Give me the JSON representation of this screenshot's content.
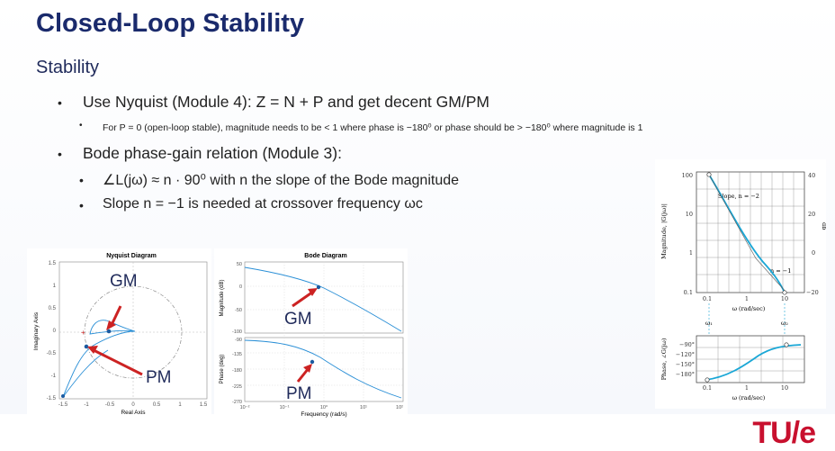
{
  "slide": {
    "title": "Closed-Loop Stability",
    "subtitle": "Stability",
    "bullets": [
      {
        "text": "Use Nyquist (Module 4): Z = N + P and get decent GM/PM"
      },
      {
        "text": "For P = 0 (open-loop stable), magnitude needs to be < 1 where phase is −180⁰ or phase should be > −180⁰ where magnitude is 1"
      },
      {
        "text": "Bode phase-gain relation (Module 3):"
      },
      {
        "text": "∠L(jω) ≈ n · 90⁰ with n the slope of the Bode magnitude"
      },
      {
        "text": "Slope n = −1 is needed at crossover frequency ωc"
      }
    ],
    "logo": "TU/e"
  },
  "nyquist": {
    "title": "Nyquist Diagram",
    "xlabel": "Real Axis",
    "ylabel": "Imaginary Axis",
    "xticks": [
      "-1.5",
      "-1",
      "-0.5",
      "0",
      "0.5",
      "1",
      "1.5"
    ],
    "yticks": [
      "1.5",
      "1",
      "0.5",
      "0",
      "-0.5",
      "-1",
      "-1.5"
    ],
    "gm_label": "GM",
    "pm_label": "PM"
  },
  "bode": {
    "title": "Bode Diagram",
    "mag_label": "Magnitude (dB)",
    "phase_label": "Phase (deg)",
    "xlabel": "Frequency (rad/s)",
    "mag_ticks": [
      "50",
      "0",
      "-50",
      "-100"
    ],
    "phase_ticks": [
      "-90",
      "-135",
      "-180",
      "-225",
      "-270"
    ],
    "freq_ticks": [
      "10⁻²",
      "10⁻¹",
      "10⁰",
      "10¹",
      "10²"
    ],
    "gm_label": "GM",
    "pm_label": "PM"
  },
  "textbook": {
    "mag_ylabel": "Magnitude, |G(jω)|",
    "right_label": "db",
    "left_ticks": [
      "100",
      "10",
      "1",
      "0.1"
    ],
    "right_ticks": [
      "40",
      "20",
      "0",
      "−20"
    ],
    "x_ticks": [
      "0.1",
      "1",
      "10"
    ],
    "xlabel": "ω (rad/sec)",
    "slope2": "Slope, n = −2",
    "slope1": "n = −1",
    "omega1": "ω₁",
    "omega2": "ω₂",
    "phase_ylabel": "Phase, ∠G(jω)",
    "phase_ticks": [
      "−90°",
      "−120°",
      "−150°",
      "−180°"
    ],
    "x_ticks2": [
      "0.1",
      "1",
      "10"
    ],
    "xlabel2": "ω (rad/sec)"
  },
  "colors": {
    "accent": "#1a2a6c",
    "curve": "#1aa7d6",
    "plot_line": "#2a8fd6",
    "arrow": "#cc2222",
    "brand": "#c8102e"
  }
}
